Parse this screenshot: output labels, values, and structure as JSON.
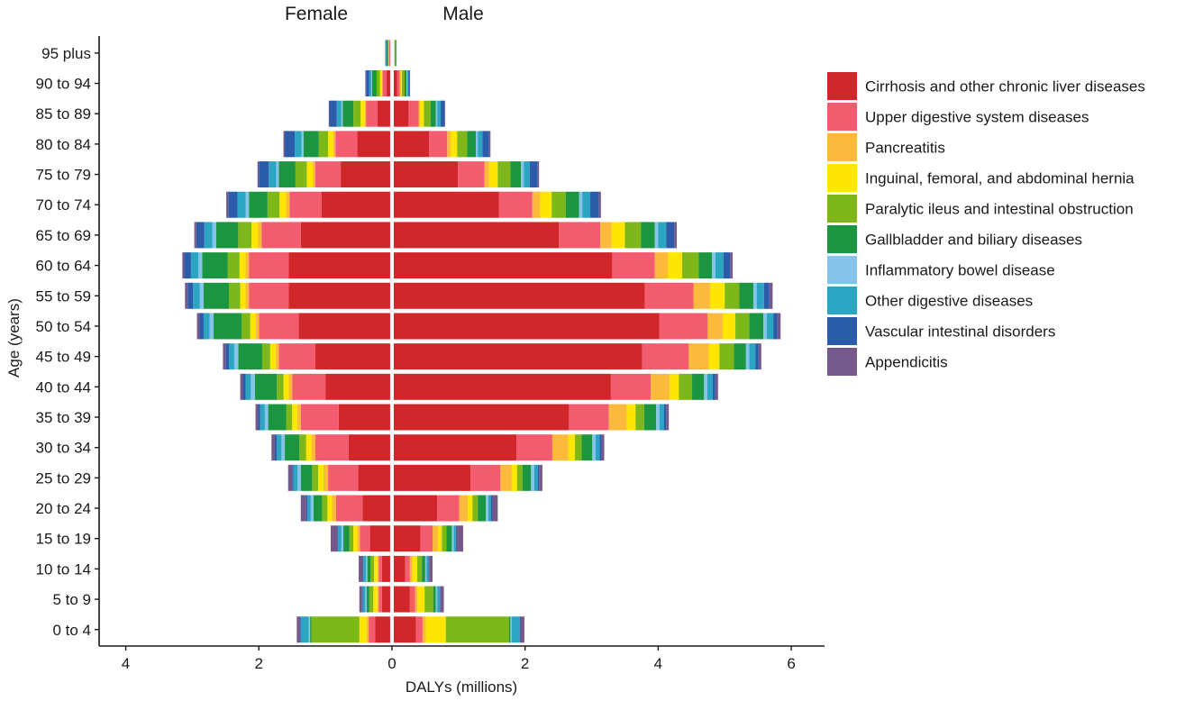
{
  "chart_data": {
    "type": "bar",
    "orientation": "horizontal",
    "layout": "population-pyramid",
    "xlabel": "DALYs (millions)",
    "ylabel": "Age (years)",
    "left_panel_title": "Female",
    "right_panel_title": "Male",
    "x_ticks": [
      {
        "value": -4,
        "label": "4"
      },
      {
        "value": -2,
        "label": "2"
      },
      {
        "value": 0,
        "label": "0"
      },
      {
        "value": 2,
        "label": "2"
      },
      {
        "value": 4,
        "label": "4"
      },
      {
        "value": 6,
        "label": "6"
      }
    ],
    "xlim": [
      -4.4,
      6.5
    ],
    "categories": [
      "0 to 4",
      "5 to 9",
      "10 to 14",
      "15 to 19",
      "20 to 24",
      "25 to 29",
      "30 to 34",
      "35 to 39",
      "40 to 44",
      "45 to 49",
      "50 to 54",
      "55 to 59",
      "60 to 64",
      "65 to 69",
      "70 to 74",
      "75 to 79",
      "80 to 84",
      "85 to 89",
      "90 to 94",
      "95 plus"
    ],
    "series": [
      {
        "name": "Cirrhosis and other chronic liver diseases",
        "color": "#D1272B",
        "female": [
          0.25,
          0.15,
          0.15,
          0.33,
          0.44,
          0.51,
          0.65,
          0.8,
          1.0,
          1.15,
          1.4,
          1.55,
          1.55,
          1.37,
          1.06,
          0.77,
          0.52,
          0.22,
          0.08,
          0.02
        ],
        "male": [
          0.36,
          0.27,
          0.2,
          0.43,
          0.68,
          1.18,
          1.87,
          2.66,
          3.29,
          3.76,
          4.02,
          3.8,
          3.31,
          2.51,
          1.61,
          0.99,
          0.56,
          0.25,
          0.08,
          0.02
        ]
      },
      {
        "name": "Upper digestive system diseases",
        "color": "#F25C6E",
        "female": [
          0.1,
          0.05,
          0.05,
          0.15,
          0.4,
          0.45,
          0.5,
          0.57,
          0.5,
          0.55,
          0.6,
          0.6,
          0.6,
          0.59,
          0.48,
          0.38,
          0.33,
          0.17,
          0.06,
          0.02
        ],
        "male": [
          0.1,
          0.08,
          0.07,
          0.18,
          0.33,
          0.45,
          0.54,
          0.6,
          0.6,
          0.7,
          0.72,
          0.73,
          0.64,
          0.62,
          0.5,
          0.4,
          0.27,
          0.15,
          0.04,
          0.01
        ]
      },
      {
        "name": "Pancreatitis",
        "color": "#FDB93B",
        "female": [
          0.03,
          0.02,
          0.02,
          0.04,
          0.06,
          0.07,
          0.06,
          0.05,
          0.05,
          0.05,
          0.05,
          0.05,
          0.05,
          0.05,
          0.05,
          0.04,
          0.03,
          0.02,
          0.01,
          0.0
        ],
        "male": [
          0.05,
          0.03,
          0.04,
          0.08,
          0.13,
          0.17,
          0.24,
          0.27,
          0.28,
          0.3,
          0.23,
          0.25,
          0.2,
          0.17,
          0.12,
          0.07,
          0.05,
          0.02,
          0.01,
          0.0
        ]
      },
      {
        "name": "Inguinal, femoral, and abdominal hernia",
        "color": "#FFE600",
        "female": [
          0.11,
          0.06,
          0.05,
          0.06,
          0.07,
          0.08,
          0.08,
          0.08,
          0.08,
          0.08,
          0.08,
          0.08,
          0.09,
          0.1,
          0.1,
          0.09,
          0.08,
          0.06,
          0.03,
          0.01
        ],
        "male": [
          0.3,
          0.11,
          0.07,
          0.06,
          0.07,
          0.08,
          0.1,
          0.13,
          0.14,
          0.16,
          0.19,
          0.22,
          0.21,
          0.2,
          0.17,
          0.13,
          0.1,
          0.06,
          0.02,
          0.01
        ]
      },
      {
        "name": "Paralytic ileus and intestinal obstruction",
        "color": "#7DB719",
        "female": [
          0.72,
          0.06,
          0.05,
          0.06,
          0.08,
          0.09,
          0.1,
          0.09,
          0.1,
          0.12,
          0.13,
          0.17,
          0.18,
          0.2,
          0.18,
          0.17,
          0.14,
          0.11,
          0.05,
          0.01
        ],
        "male": [
          0.95,
          0.13,
          0.07,
          0.07,
          0.08,
          0.08,
          0.1,
          0.13,
          0.2,
          0.22,
          0.21,
          0.22,
          0.25,
          0.24,
          0.21,
          0.19,
          0.15,
          0.1,
          0.04,
          0.01
        ]
      },
      {
        "name": "Gallbladder and biliary diseases",
        "color": "#1C9540",
        "female": [
          0.02,
          0.04,
          0.05,
          0.09,
          0.13,
          0.17,
          0.22,
          0.27,
          0.33,
          0.36,
          0.42,
          0.38,
          0.38,
          0.33,
          0.28,
          0.25,
          0.23,
          0.16,
          0.07,
          0.02
        ],
        "male": [
          0.02,
          0.04,
          0.05,
          0.08,
          0.12,
          0.13,
          0.16,
          0.18,
          0.18,
          0.18,
          0.21,
          0.21,
          0.2,
          0.21,
          0.2,
          0.16,
          0.13,
          0.08,
          0.03,
          0.01
        ]
      },
      {
        "name": "Inflammatory bowel disease",
        "color": "#85C3EA",
        "female": [
          0.02,
          0.02,
          0.02,
          0.03,
          0.04,
          0.05,
          0.05,
          0.05,
          0.06,
          0.06,
          0.06,
          0.06,
          0.06,
          0.06,
          0.05,
          0.04,
          0.03,
          0.02,
          0.01,
          0.0
        ],
        "male": [
          0.02,
          0.02,
          0.02,
          0.03,
          0.04,
          0.05,
          0.05,
          0.05,
          0.05,
          0.05,
          0.05,
          0.05,
          0.05,
          0.05,
          0.05,
          0.04,
          0.03,
          0.02,
          0.01,
          0.0
        ]
      },
      {
        "name": "Other digestive diseases",
        "color": "#2BA5C1",
        "female": [
          0.12,
          0.04,
          0.04,
          0.05,
          0.05,
          0.06,
          0.07,
          0.07,
          0.08,
          0.08,
          0.09,
          0.1,
          0.11,
          0.12,
          0.12,
          0.11,
          0.1,
          0.07,
          0.03,
          0.01
        ],
        "male": [
          0.12,
          0.04,
          0.03,
          0.03,
          0.04,
          0.05,
          0.06,
          0.07,
          0.08,
          0.09,
          0.1,
          0.11,
          0.12,
          0.12,
          0.12,
          0.09,
          0.07,
          0.05,
          0.02,
          0.01
        ]
      },
      {
        "name": "Vascular intestinal disorders",
        "color": "#2A5CAA",
        "female": [
          0.01,
          0.01,
          0.01,
          0.01,
          0.02,
          0.02,
          0.03,
          0.03,
          0.04,
          0.05,
          0.06,
          0.08,
          0.1,
          0.12,
          0.14,
          0.15,
          0.15,
          0.11,
          0.05,
          0.01
        ],
        "male": [
          0.01,
          0.01,
          0.01,
          0.01,
          0.02,
          0.02,
          0.03,
          0.03,
          0.04,
          0.05,
          0.06,
          0.08,
          0.1,
          0.12,
          0.13,
          0.12,
          0.1,
          0.06,
          0.02,
          0.0
        ]
      },
      {
        "name": "Appendicitis",
        "color": "#76598B",
        "female": [
          0.05,
          0.04,
          0.06,
          0.1,
          0.08,
          0.06,
          0.05,
          0.04,
          0.04,
          0.04,
          0.04,
          0.04,
          0.03,
          0.03,
          0.03,
          0.02,
          0.02,
          0.01,
          0.01,
          0.0
        ],
        "male": [
          0.06,
          0.05,
          0.05,
          0.1,
          0.08,
          0.05,
          0.04,
          0.04,
          0.04,
          0.04,
          0.05,
          0.05,
          0.04,
          0.04,
          0.03,
          0.02,
          0.02,
          0.01,
          0.0,
          0.0
        ]
      }
    ],
    "legend_position": "right"
  }
}
